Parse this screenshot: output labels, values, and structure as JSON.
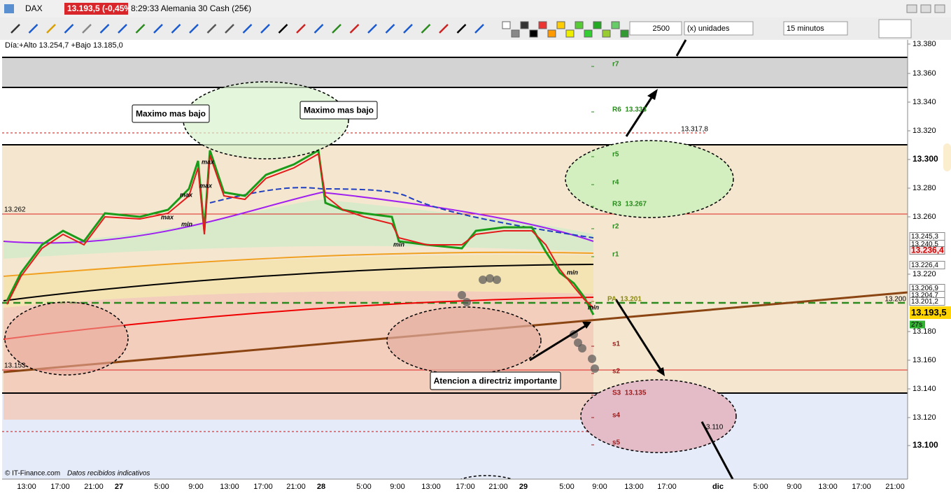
{
  "window": {
    "title": "DAX",
    "price": "13.193,5 (-0,45%)",
    "info": "8:29:33 Alemania 30 Cash (25€)"
  },
  "toolbar": {
    "quantity": "2500",
    "unit": "(x) unidades",
    "timeframe": "15 minutos"
  },
  "chart": {
    "day_range": "Día:+Alto 13.254,7 +Bajo 13.185,0",
    "price_axis": [
      "13.380",
      "13.360",
      "13.340",
      "13.320",
      "13.300",
      "13.280",
      "13.260",
      "13.220",
      "13.180",
      "13.160",
      "13.140",
      "13.120",
      "13.100"
    ],
    "time_axis": [
      "13:00",
      "17:00",
      "21:00",
      "27",
      "5:00",
      "9:00",
      "13:00",
      "17:00",
      "21:00",
      "28",
      "5:00",
      "9:00",
      "13:00",
      "17:00",
      "21:00",
      "29",
      "5:00",
      "9:00",
      "13:00",
      "17:00",
      "dic",
      "5:00",
      "9:00",
      "13:00",
      "17:00",
      "21:00"
    ],
    "price_boxes": [
      "13.245,3",
      "13.240,5",
      "13.236,4",
      "13.226,4",
      "13.206,9",
      "13.204,7",
      "13.201,2",
      "13.193,5",
      "27s"
    ],
    "level_labels": [
      "13.262",
      "13.153",
      "13.317,8",
      "13.200",
      "3.110"
    ],
    "annotations": [
      "Maximo mas bajo",
      "Maximo mas bajo",
      "Atencion a directriz importante"
    ],
    "pivots": [
      "r7",
      "R6  13.333",
      "r5",
      "r4",
      "R3  13.267",
      "r2",
      "r1",
      "PA  13.201",
      "s1",
      "s2",
      "S3  13.135",
      "s4",
      "s5"
    ],
    "markers": [
      "max",
      "max",
      "max",
      "max",
      "min",
      "min",
      "min",
      "min"
    ],
    "footer": {
      "source": "© IT-Finance.com",
      "note": "Datos recibidos indicativos"
    }
  }
}
